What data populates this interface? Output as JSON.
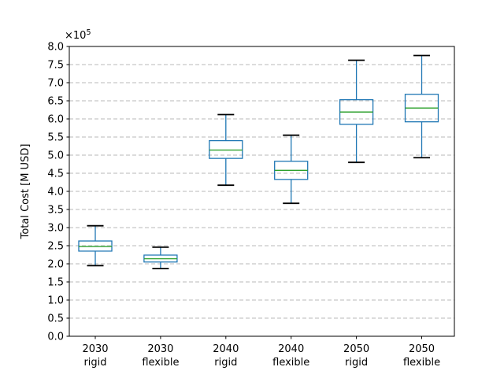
{
  "figure": {
    "background_color": "#ffffff"
  },
  "chart_data": {
    "type": "box",
    "title": "",
    "xlabel": "",
    "ylabel": "Total Cost [M USD]",
    "y_offset_text": {
      "base": "×10",
      "exponent": "5"
    },
    "values_scale": "1e5",
    "ylim": [
      0.0,
      8.0
    ],
    "ytick_step": 0.5,
    "ytick_labels": [
      "0.0",
      "0.5",
      "1.0",
      "1.5",
      "2.0",
      "2.5",
      "3.0",
      "3.5",
      "4.0",
      "4.5",
      "5.0",
      "5.5",
      "6.0",
      "6.5",
      "7.0",
      "7.5",
      "8.0"
    ],
    "grid": {
      "axis": "y",
      "style": "dashed",
      "visible": true
    },
    "legend": null,
    "categories": [
      {
        "line1": "2030",
        "line2": "rigid"
      },
      {
        "line1": "2030",
        "line2": "flexible"
      },
      {
        "line1": "2040",
        "line2": "rigid"
      },
      {
        "line1": "2040",
        "line2": "flexible"
      },
      {
        "line1": "2050",
        "line2": "rigid"
      },
      {
        "line1": "2050",
        "line2": "flexible"
      }
    ],
    "boxes": [
      {
        "label": "2030 rigid",
        "whisker_low": 1.95,
        "q1": 2.35,
        "median": 2.48,
        "q3": 2.63,
        "whisker_high": 3.05
      },
      {
        "label": "2030 flexible",
        "whisker_low": 1.87,
        "q1": 2.05,
        "median": 2.14,
        "q3": 2.24,
        "whisker_high": 2.46
      },
      {
        "label": "2040 rigid",
        "whisker_low": 4.17,
        "q1": 4.91,
        "median": 5.14,
        "q3": 5.4,
        "whisker_high": 6.12
      },
      {
        "label": "2040 flexible",
        "whisker_low": 3.67,
        "q1": 4.33,
        "median": 4.58,
        "q3": 4.83,
        "whisker_high": 5.55
      },
      {
        "label": "2050 rigid",
        "whisker_low": 4.8,
        "q1": 5.85,
        "median": 6.19,
        "q3": 6.53,
        "whisker_high": 7.62
      },
      {
        "label": "2050 flexible",
        "whisker_low": 4.93,
        "q1": 5.92,
        "median": 6.3,
        "q3": 6.68,
        "whisker_high": 7.75
      }
    ],
    "colors": {
      "box": "#1f77b4",
      "whisker": "#1f77b4",
      "cap": "#000000",
      "median": "#2ca02c",
      "grid": "#b8b8b8",
      "axis": "#000000",
      "text": "#000000",
      "background": "#ffffff"
    }
  }
}
